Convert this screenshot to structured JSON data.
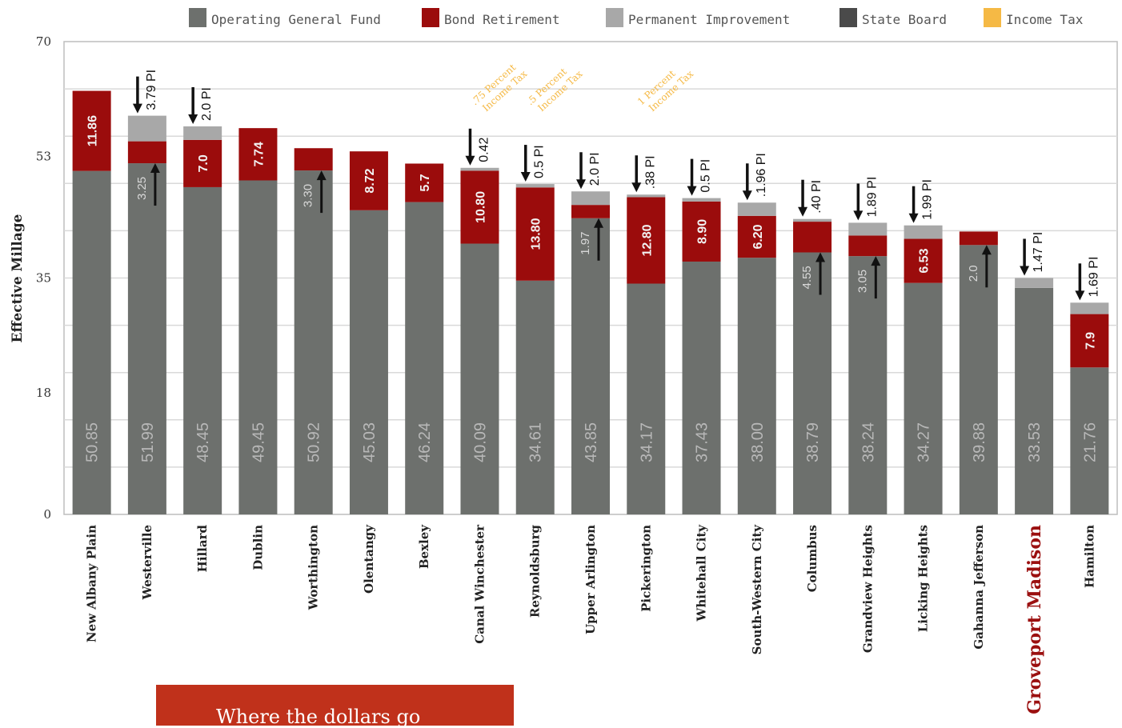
{
  "chart_data": {
    "type": "bar",
    "stacked": true,
    "ylabel": "Effective Millage",
    "ylim": [
      0,
      70
    ],
    "yticks": [
      0,
      18,
      35,
      53,
      70
    ],
    "grid": true,
    "legend_position": "top",
    "legend": [
      {
        "name": "Operating General Fund",
        "color": "#6d706d"
      },
      {
        "name": "Bond Retirement",
        "color": "#9b0c0c"
      },
      {
        "name": "Permanent Improvement",
        "color": "#a8a8a8"
      },
      {
        "name": "State Board",
        "color": "#4a4a4a"
      },
      {
        "name": "Income Tax",
        "color": "#f5b945"
      }
    ],
    "categories": [
      "New Albany Plain",
      "Westerville",
      "Hillard",
      "Dublin",
      "Worthington",
      "Olentangy",
      "Bexley",
      "Canal Winchester",
      "Reynoldsburg",
      "Upper Arlington",
      "Pickerington",
      "Whitehall City",
      "South-Western City",
      "Columbus",
      "Grandview Heights",
      "Licking Heights",
      "Gahanna Jefferson",
      "Groveport Madison",
      "Hamilton"
    ],
    "highlight_category": "Groveport Madison",
    "series": [
      {
        "name": "Operating General Fund",
        "values": [
          50.85,
          51.99,
          48.45,
          49.45,
          50.92,
          45.03,
          46.24,
          40.09,
          34.61,
          43.85,
          34.17,
          37.43,
          38.0,
          38.79,
          38.24,
          34.27,
          39.88,
          33.53,
          21.76
        ]
      },
      {
        "name": "Bond Retirement",
        "values": [
          11.86,
          3.25,
          7.0,
          7.74,
          3.3,
          8.72,
          5.7,
          10.8,
          13.8,
          1.97,
          12.8,
          8.9,
          6.2,
          4.55,
          3.05,
          6.53,
          2.0,
          0,
          7.9
        ]
      },
      {
        "name": "Permanent Improvement",
        "values": [
          0,
          3.79,
          2.0,
          0,
          0,
          0,
          0,
          0.42,
          0.5,
          2.0,
          0.38,
          0.5,
          1.96,
          0.4,
          1.89,
          1.99,
          0,
          1.47,
          1.69
        ]
      }
    ],
    "bar_labels": {
      "operating": [
        "50.85",
        "51.99",
        "48.45",
        "49.45",
        "50.92",
        "45.03",
        "46.24",
        "40.09",
        "34.61",
        "43.85",
        "34.17",
        "37.43",
        "38.00",
        "38.79",
        "38.24",
        "34.27",
        "39.88",
        "33.53",
        "21.76"
      ],
      "bond": [
        "11.86",
        "3.25",
        "7.0",
        "7.74",
        "3.30",
        "8.72",
        "5.7",
        "10.80",
        "13.80",
        "1.97",
        "12.80",
        "8.90",
        "6.20",
        "4.55",
        "3.05",
        "6.53",
        "2.0",
        "",
        "7.9"
      ],
      "improvement": [
        "",
        "3.79 PI",
        "2.0 PI",
        "",
        "",
        "",
        "",
        "0.42",
        "0.5 PI",
        "2.0 PI",
        ".38 PI",
        "0.5 PI",
        ".1.96 PI",
        ".40 PI",
        "1.89 PI",
        "1.99 PI",
        "",
        "1.47 PI",
        "1.69 PI"
      ]
    },
    "bond_label_inline": [
      false,
      true,
      false,
      false,
      true,
      false,
      false,
      false,
      false,
      true,
      false,
      false,
      false,
      true,
      true,
      false,
      true,
      false,
      false
    ],
    "income_tax_notes": [
      {
        "category": "Canal Winchester",
        "text": [
          ".75 Percent",
          "Income Tax"
        ]
      },
      {
        "category": "Reynoldsburg",
        "text": [
          ".5 Percent",
          "Income Tax"
        ]
      },
      {
        "category": "Pickerington",
        "text": [
          "1 Percent",
          "Income Tax"
        ]
      }
    ]
  },
  "banner": {
    "title": "Where the dollars go"
  }
}
